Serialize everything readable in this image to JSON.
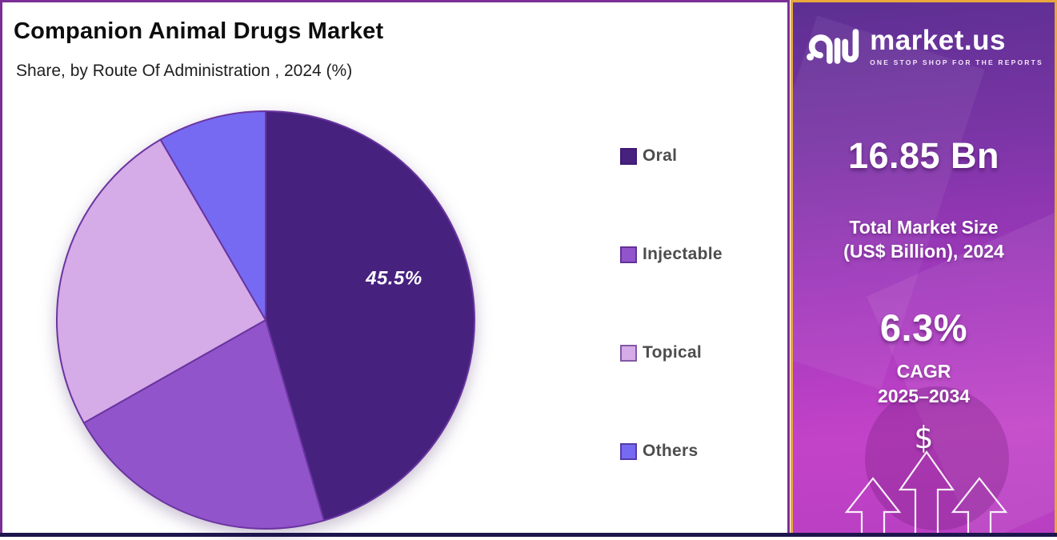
{
  "header": {
    "title": "Companion Animal Drugs Market",
    "subtitle": "Share, by Route Of Administration , 2024 (%)"
  },
  "chart_data": {
    "type": "pie",
    "title": "Companion Animal Drugs Market",
    "subtitle": "Share, by Route Of Administration , 2024 (%)",
    "unit": "%",
    "year": "2024",
    "categories": [
      "Oral",
      "Injectable",
      "Topical",
      "Others"
    ],
    "values": [
      45.5,
      21.3,
      24.8,
      8.4
    ],
    "labels": [
      "45.5%",
      "",
      "",
      ""
    ],
    "colors": [
      "#46217e",
      "#9254cb",
      "#d5abe8",
      "#766af2"
    ],
    "slice_stroke": "#6a35a0",
    "start_angle_deg": 0,
    "direction": "clockwise",
    "legend_position": "right"
  },
  "sidebar": {
    "brand_name": "market.us",
    "brand_tagline": "ONE STOP SHOP FOR THE REPORTS",
    "market_size_value": "16.85 Bn",
    "market_size_label_line1": "Total Market Size",
    "market_size_label_line2": "(US$ Billion), 2024",
    "cagr_value": "6.3%",
    "cagr_label": "CAGR",
    "cagr_period": "2025–2034",
    "dollar_symbol": "$",
    "accent_border_color": "#eaa83c",
    "gradient_top_color": "#5c2f92",
    "gradient_bottom_color": "#c343c8"
  },
  "frame": {
    "panel_border_color": "#7b2f96",
    "bottom_strip_color": "#1d164d"
  },
  "icons": {
    "brand_logo": "marketus-logo",
    "currency": "dollar-sign",
    "growth": "triple-up-arrows"
  }
}
